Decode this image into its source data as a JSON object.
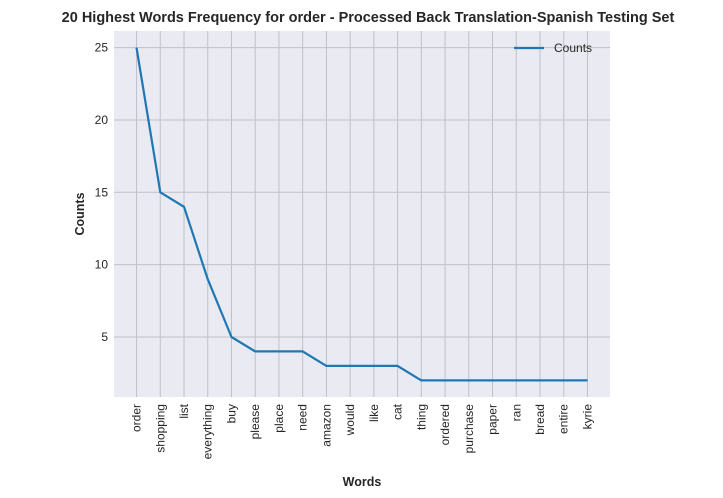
{
  "chart_data": {
    "type": "line",
    "title": "20 Highest Words Frequency for order - Processed Back Translation-Spanish Testing Set",
    "xlabel": "Words",
    "ylabel": "Counts",
    "categories": [
      "order",
      "shopping",
      "list",
      "everything",
      "buy",
      "please",
      "place",
      "need",
      "amazon",
      "would",
      "like",
      "cat",
      "thing",
      "ordered",
      "purchase",
      "paper",
      "ran",
      "bread",
      "entire",
      "kyrie"
    ],
    "series": [
      {
        "name": "Counts",
        "values": [
          25,
          15,
          14,
          9,
          5,
          4,
          4,
          4,
          3,
          3,
          3,
          3,
          2,
          2,
          2,
          2,
          2,
          2,
          2,
          2
        ]
      }
    ],
    "ylim": [
      0.85,
      26.15
    ],
    "yticks": [
      5,
      10,
      15,
      20,
      25
    ],
    "grid": true,
    "legend": "upper-right",
    "colors": {
      "line": "#1f77b4",
      "plot_bg": "#eaeaf2",
      "grid": "#c0c0c8"
    }
  }
}
